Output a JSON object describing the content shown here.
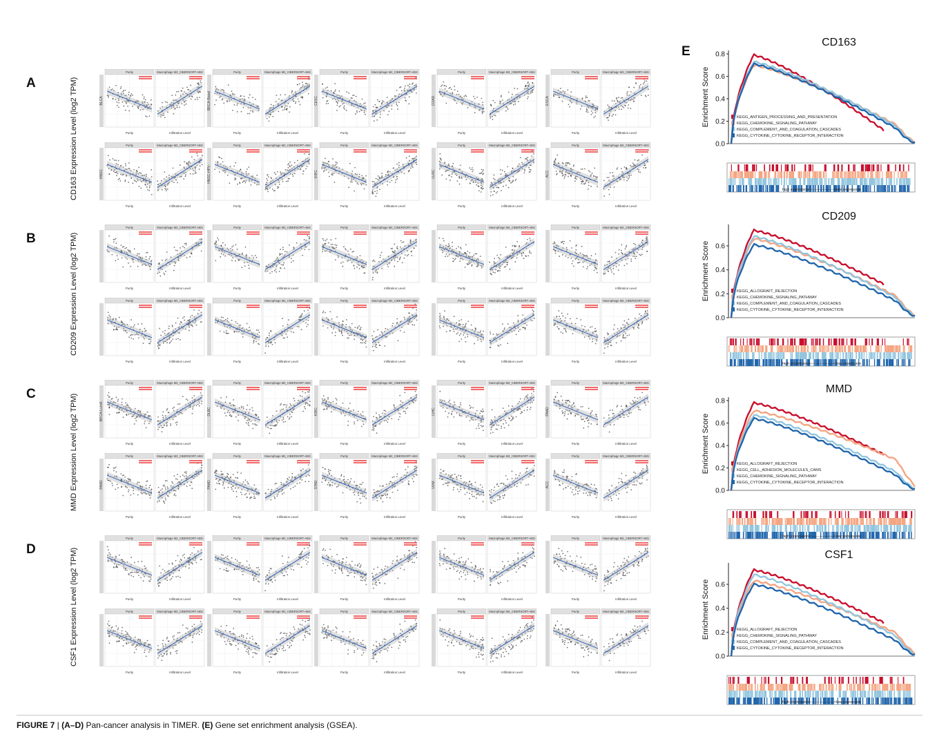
{
  "panels": [
    {
      "letter": "A",
      "ylabel": "CD163 Expression Level (log2 TPM)",
      "rows": [
        [
          "BLCA",
          "BRCA-Basal",
          "CESC",
          "COAD",
          "ESCA"
        ],
        [
          "HNSC",
          "HNSC-HPV-",
          "KIRC",
          "LUSC",
          "ACC"
        ]
      ]
    },
    {
      "letter": "B",
      "ylabel": "CD209 Expression Level (log2 TPM)",
      "rows": [
        [
          "",
          "",
          "",
          "",
          ""
        ],
        [
          "",
          "",
          "",
          "",
          ""
        ]
      ]
    },
    {
      "letter": "C",
      "ylabel": "MMD Expression Level (log2 TPM)",
      "rows": [
        [
          "BRCA-LumA",
          "DLBC",
          "KIRC",
          "LIHC",
          "PAAD"
        ],
        [
          "PAAD",
          "PAAD",
          "STAD",
          "UVM",
          "ACC"
        ]
      ]
    },
    {
      "letter": "D",
      "ylabel": "CSF1 Expression Level (log2 TPM)",
      "rows": [
        [
          "",
          "",
          "",
          "",
          ""
        ],
        [
          "",
          "",
          "",
          "",
          ""
        ]
      ]
    }
  ],
  "scatter_text": {
    "left_strip": "Purity",
    "right_strip": "Macrophage M2_CIBERSORT-ABS",
    "left_xlabel": "Purity",
    "right_xlabel": "Infiltration Level"
  },
  "panel_e_letter": "E",
  "chart_data": [
    {
      "type": "line",
      "title": "CD163",
      "ylabel": "Enrichment Score",
      "ylim": [
        0,
        0.8
      ],
      "yticks": [
        "0.0",
        "0.2",
        "0.4",
        "0.6",
        "0.8"
      ],
      "bottom_label": "high expression<------------------>low expression",
      "series": [
        {
          "name": "KEGG_ANTIGEN_PROCESSING_AND_PRESENTATION",
          "color": "#c8102e",
          "peak": 0.79,
          "end": 0.12
        },
        {
          "name": "KEGG_CHEMOKINE_SIGNALING_PATHWAY",
          "color": "#f4a582",
          "peak": 0.7,
          "end": 0.08
        },
        {
          "name": "KEGG_COMPLEMENT_AND_COAGULATION_CASCADES",
          "color": "#92c5de",
          "peak": 0.73,
          "end": 0.06
        },
        {
          "name": "KEGG_CYTOKINE_CYTOKINE_RECEPTOR_INTERACTION",
          "color": "#2166ac",
          "peak": 0.71,
          "end": 0.04
        }
      ]
    },
    {
      "type": "line",
      "title": "CD209",
      "ylabel": "Enrichment Score",
      "ylim": [
        0,
        0.75
      ],
      "yticks": [
        "0.0",
        "0.2",
        "0.4",
        "0.6"
      ],
      "bottom_label": "high expression<------------------>low expression",
      "series": [
        {
          "name": "KEGG_ALLOGRAFT_REJECTION",
          "color": "#c8102e",
          "peak": 0.73,
          "end": 0.28
        },
        {
          "name": "KEGG_CHEMOKINE_SIGNALING_PATHWAY",
          "color": "#f4a582",
          "peak": 0.66,
          "end": 0.1
        },
        {
          "name": "KEGG_COMPLEMENT_AND_COAGULATION_CASCADES",
          "color": "#92c5de",
          "peak": 0.68,
          "end": 0.08
        },
        {
          "name": "KEGG_CYTOKINE_CYTOKINE_RECEPTOR_INTERACTION",
          "color": "#2166ac",
          "peak": 0.61,
          "end": 0.06
        }
      ]
    },
    {
      "type": "line",
      "title": "MMD",
      "ylabel": "Enrichment Score",
      "ylim": [
        0,
        0.8
      ],
      "yticks": [
        "0.0",
        "0.2",
        "0.4",
        "0.6",
        "0.8"
      ],
      "bottom_label": "high expression<------------------>low expression",
      "series": [
        {
          "name": "KEGG_ALLOGRAFT_REJECTION",
          "color": "#c8102e",
          "peak": 0.78,
          "end": 0.32
        },
        {
          "name": "KEGG_CELL_ADHESION_MOLECULES_CAMS",
          "color": "#f4a582",
          "peak": 0.71,
          "end": 0.2
        },
        {
          "name": "KEGG_CHEMOKINE_SIGNALING_PATHWAY",
          "color": "#92c5de",
          "peak": 0.67,
          "end": 0.08
        },
        {
          "name": "KEGG_CYTOKINE_CYTOKINE_RECEPTOR_INTERACTION",
          "color": "#2166ac",
          "peak": 0.64,
          "end": 0.05
        }
      ]
    },
    {
      "type": "line",
      "title": "CSF1",
      "ylabel": "Enrichment Score",
      "ylim": [
        0,
        0.75
      ],
      "yticks": [
        "0.0",
        "0.2",
        "0.4",
        "0.6"
      ],
      "bottom_label": "high expression<------------------>low expression",
      "series": [
        {
          "name": "KEGG_ALLOGRAFT_REJECTION",
          "color": "#c8102e",
          "peak": 0.72,
          "end": 0.28
        },
        {
          "name": "KEGG_CHEMOKINE_SIGNALING_PATHWAY",
          "color": "#f4a582",
          "peak": 0.63,
          "end": 0.12
        },
        {
          "name": "KEGG_COMPLEMENT_AND_COAGULATION_CASCADES",
          "color": "#92c5de",
          "peak": 0.68,
          "end": 0.08
        },
        {
          "name": "KEGG_CYTOKINE_CYTOKINE_RECEPTOR_INTERACTION",
          "color": "#2166ac",
          "peak": 0.6,
          "end": 0.05
        }
      ]
    }
  ],
  "caption": {
    "figure": "FIGURE 7",
    "sep": " | ",
    "a_d": "(A–D)",
    "a_d_text": " Pan-cancer analysis in TIMER. ",
    "e": "(E)",
    "e_text": " Gene set enrichment analysis (GSEA)."
  }
}
